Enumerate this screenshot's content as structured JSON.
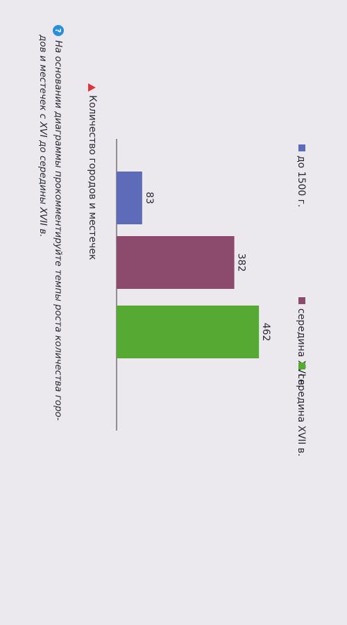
{
  "chart_data": {
    "type": "bar",
    "title": "Количество городов и местечек",
    "categories": [
      null
    ],
    "series": [
      {
        "name": "до 1500 г.",
        "color": "#5d6bb8",
        "values": [
          83
        ]
      },
      {
        "name": "середина XVI в.",
        "color": "#8c4b6c",
        "values": [
          382
        ]
      },
      {
        "name": "середина XVII в.",
        "color": "#56aa34",
        "values": [
          462
        ]
      }
    ],
    "ylim": [
      0,
      500
    ]
  },
  "question": {
    "lines": [
      "На основании диаграммы прокомментируйте темпы роста количества горо-",
      "дов и местечек с XVI до середины XVII в."
    ]
  }
}
